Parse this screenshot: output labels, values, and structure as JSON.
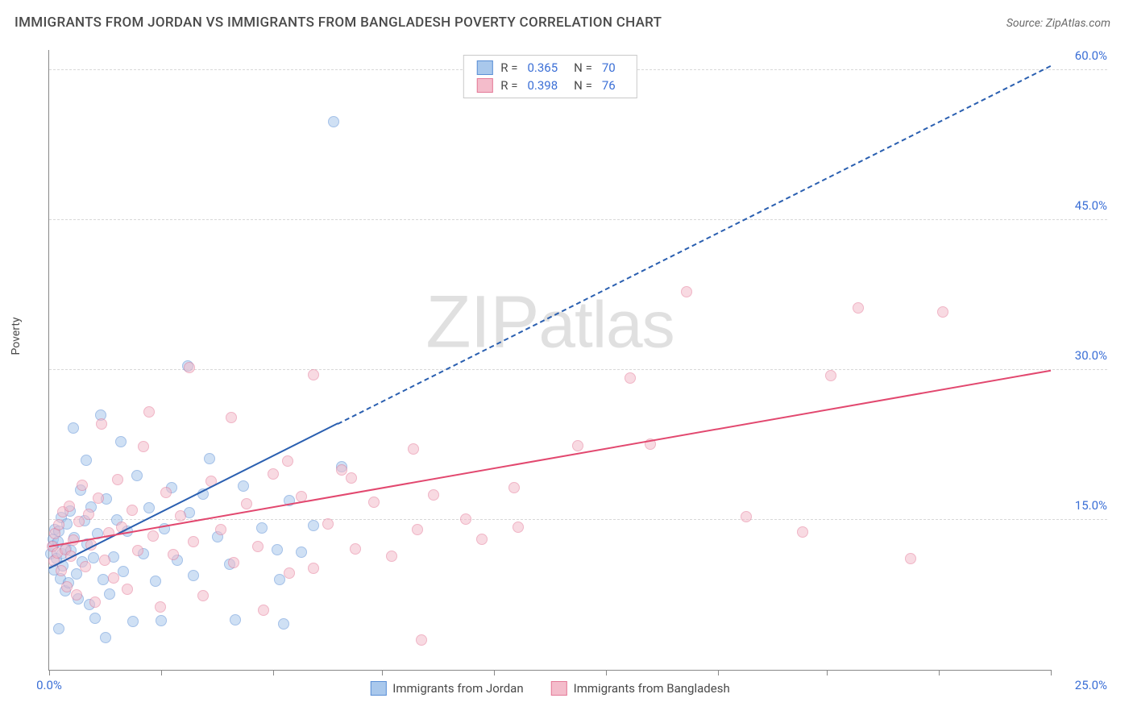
{
  "header": {
    "title": "IMMIGRANTS FROM JORDAN VS IMMIGRANTS FROM BANGLADESH POVERTY CORRELATION CHART",
    "source": "Source: ZipAtlas.com"
  },
  "ylabel": "Poverty",
  "watermark": {
    "prefix": "ZIP",
    "suffix": "atlas"
  },
  "chart": {
    "type": "scatter",
    "xlim": [
      0,
      25
    ],
    "ylim": [
      0,
      62
    ],
    "x_origin_label": "0.0%",
    "x_max_label": "25.0%",
    "xtick_positions": [
      0,
      2.8,
      5.6,
      8.3,
      11.1,
      13.9,
      16.7,
      19.4,
      22.2,
      25
    ],
    "yticks": [
      {
        "v": 15,
        "label": "15.0%"
      },
      {
        "v": 30,
        "label": "30.0%"
      },
      {
        "v": 45,
        "label": "45.0%"
      },
      {
        "v": 60,
        "label": "60.0%"
      }
    ],
    "background_color": "#ffffff",
    "grid_color": "#d8d8d8",
    "point_radius": 7,
    "point_opacity": 0.55,
    "series": [
      {
        "name": "Immigrants from Jordan",
        "color_fill": "#a9c8ec",
        "color_stroke": "#5b8fd6",
        "R": "0.365",
        "N": "70",
        "trend": {
          "x1": 0,
          "y1": 10.2,
          "x2": 25,
          "y2": 60.5,
          "solid_until_x": 7.2,
          "color": "#2a5fb0",
          "width": 2.4,
          "dash": "7 6"
        },
        "points": [
          [
            0.05,
            11.6
          ],
          [
            0.1,
            12.4
          ],
          [
            0.1,
            13.1
          ],
          [
            0.12,
            10.0
          ],
          [
            0.15,
            14.0
          ],
          [
            0.18,
            11.1
          ],
          [
            0.22,
            12.8
          ],
          [
            0.25,
            13.9
          ],
          [
            0.28,
            9.1
          ],
          [
            0.3,
            15.2
          ],
          [
            0.32,
            11.6
          ],
          [
            0.35,
            10.4
          ],
          [
            0.4,
            7.9
          ],
          [
            0.42,
            12.1
          ],
          [
            0.45,
            14.6
          ],
          [
            0.48,
            8.7
          ],
          [
            0.52,
            15.9
          ],
          [
            0.55,
            11.9
          ],
          [
            0.6,
            24.2
          ],
          [
            0.62,
            13.2
          ],
          [
            0.68,
            9.6
          ],
          [
            0.72,
            7.1
          ],
          [
            0.78,
            18.0
          ],
          [
            0.82,
            10.8
          ],
          [
            0.88,
            14.9
          ],
          [
            0.92,
            21.0
          ],
          [
            0.95,
            12.6
          ],
          [
            1.0,
            6.5
          ],
          [
            1.05,
            16.3
          ],
          [
            1.1,
            11.2
          ],
          [
            1.15,
            5.2
          ],
          [
            1.2,
            13.6
          ],
          [
            1.28,
            25.5
          ],
          [
            1.35,
            9.0
          ],
          [
            1.42,
            17.1
          ],
          [
            1.5,
            7.6
          ],
          [
            1.6,
            11.3
          ],
          [
            1.68,
            15.0
          ],
          [
            1.78,
            22.8
          ],
          [
            1.85,
            9.8
          ],
          [
            1.95,
            13.9
          ],
          [
            2.1,
            4.8
          ],
          [
            2.2,
            19.4
          ],
          [
            2.35,
            11.6
          ],
          [
            2.5,
            16.2
          ],
          [
            2.65,
            8.9
          ],
          [
            2.8,
            4.9
          ],
          [
            2.88,
            14.1
          ],
          [
            3.05,
            18.2
          ],
          [
            3.2,
            11.0
          ],
          [
            3.45,
            30.4
          ],
          [
            3.5,
            15.7
          ],
          [
            3.6,
            9.4
          ],
          [
            3.85,
            17.6
          ],
          [
            4.0,
            21.1
          ],
          [
            4.2,
            13.3
          ],
          [
            4.5,
            10.6
          ],
          [
            4.65,
            5.0
          ],
          [
            4.85,
            18.4
          ],
          [
            5.3,
            14.2
          ],
          [
            5.7,
            12.0
          ],
          [
            5.75,
            9.0
          ],
          [
            5.85,
            4.6
          ],
          [
            6.0,
            16.9
          ],
          [
            6.3,
            11.8
          ],
          [
            6.6,
            14.4
          ],
          [
            7.1,
            54.8
          ],
          [
            7.3,
            20.3
          ],
          [
            0.25,
            4.1
          ],
          [
            1.4,
            3.2
          ]
        ]
      },
      {
        "name": "Immigrants from Bangladesh",
        "color_fill": "#f4bccb",
        "color_stroke": "#e47a98",
        "R": "0.398",
        "N": "76",
        "trend": {
          "x1": 0,
          "y1": 12.4,
          "x2": 25,
          "y2": 30.0,
          "solid_until_x": 25,
          "color": "#e2486f",
          "width": 2.6,
          "dash": ""
        },
        "points": [
          [
            0.08,
            12.3
          ],
          [
            0.12,
            10.9
          ],
          [
            0.15,
            13.6
          ],
          [
            0.2,
            11.7
          ],
          [
            0.25,
            14.5
          ],
          [
            0.3,
            9.9
          ],
          [
            0.35,
            15.8
          ],
          [
            0.4,
            12.0
          ],
          [
            0.45,
            8.3
          ],
          [
            0.5,
            16.4
          ],
          [
            0.55,
            11.4
          ],
          [
            0.6,
            13.0
          ],
          [
            0.68,
            7.5
          ],
          [
            0.75,
            14.8
          ],
          [
            0.82,
            18.5
          ],
          [
            0.9,
            10.3
          ],
          [
            0.98,
            15.6
          ],
          [
            1.05,
            12.5
          ],
          [
            1.15,
            6.8
          ],
          [
            1.22,
            17.2
          ],
          [
            1.3,
            24.6
          ],
          [
            1.38,
            11.0
          ],
          [
            1.48,
            13.7
          ],
          [
            1.6,
            9.2
          ],
          [
            1.7,
            19.0
          ],
          [
            1.82,
            14.3
          ],
          [
            1.95,
            8.1
          ],
          [
            2.08,
            16.0
          ],
          [
            2.22,
            11.9
          ],
          [
            2.35,
            22.3
          ],
          [
            2.5,
            25.8
          ],
          [
            2.6,
            13.4
          ],
          [
            2.78,
            6.3
          ],
          [
            2.92,
            17.7
          ],
          [
            3.1,
            11.5
          ],
          [
            3.28,
            15.4
          ],
          [
            3.5,
            30.2
          ],
          [
            3.6,
            12.8
          ],
          [
            3.85,
            7.4
          ],
          [
            4.05,
            18.9
          ],
          [
            4.28,
            14.0
          ],
          [
            4.55,
            25.2
          ],
          [
            4.6,
            10.7
          ],
          [
            4.92,
            16.6
          ],
          [
            5.2,
            12.3
          ],
          [
            5.35,
            6.0
          ],
          [
            5.6,
            19.6
          ],
          [
            6.0,
            9.7
          ],
          [
            6.3,
            17.3
          ],
          [
            6.6,
            29.5
          ],
          [
            6.6,
            10.2
          ],
          [
            6.95,
            14.6
          ],
          [
            7.3,
            20.0
          ],
          [
            7.55,
            19.2
          ],
          [
            7.65,
            12.1
          ],
          [
            8.1,
            16.8
          ],
          [
            8.55,
            11.4
          ],
          [
            9.1,
            22.1
          ],
          [
            9.2,
            14.0
          ],
          [
            9.3,
            3.0
          ],
          [
            9.6,
            17.5
          ],
          [
            10.4,
            15.1
          ],
          [
            10.8,
            13.1
          ],
          [
            11.6,
            18.2
          ],
          [
            11.7,
            14.3
          ],
          [
            13.2,
            22.4
          ],
          [
            14.5,
            29.2
          ],
          [
            15.0,
            22.6
          ],
          [
            15.9,
            37.8
          ],
          [
            17.4,
            15.3
          ],
          [
            18.8,
            13.8
          ],
          [
            19.5,
            29.4
          ],
          [
            20.2,
            36.2
          ],
          [
            21.5,
            11.1
          ],
          [
            22.3,
            35.8
          ],
          [
            5.95,
            20.9
          ]
        ]
      }
    ]
  },
  "legend_top_labels": {
    "R": "R =",
    "N": "N ="
  },
  "legend_bottom": [
    {
      "label": "Immigrants from Jordan",
      "fill": "#a9c8ec",
      "stroke": "#5b8fd6"
    },
    {
      "label": "Immigrants from Bangladesh",
      "fill": "#f4bccb",
      "stroke": "#e47a98"
    }
  ]
}
